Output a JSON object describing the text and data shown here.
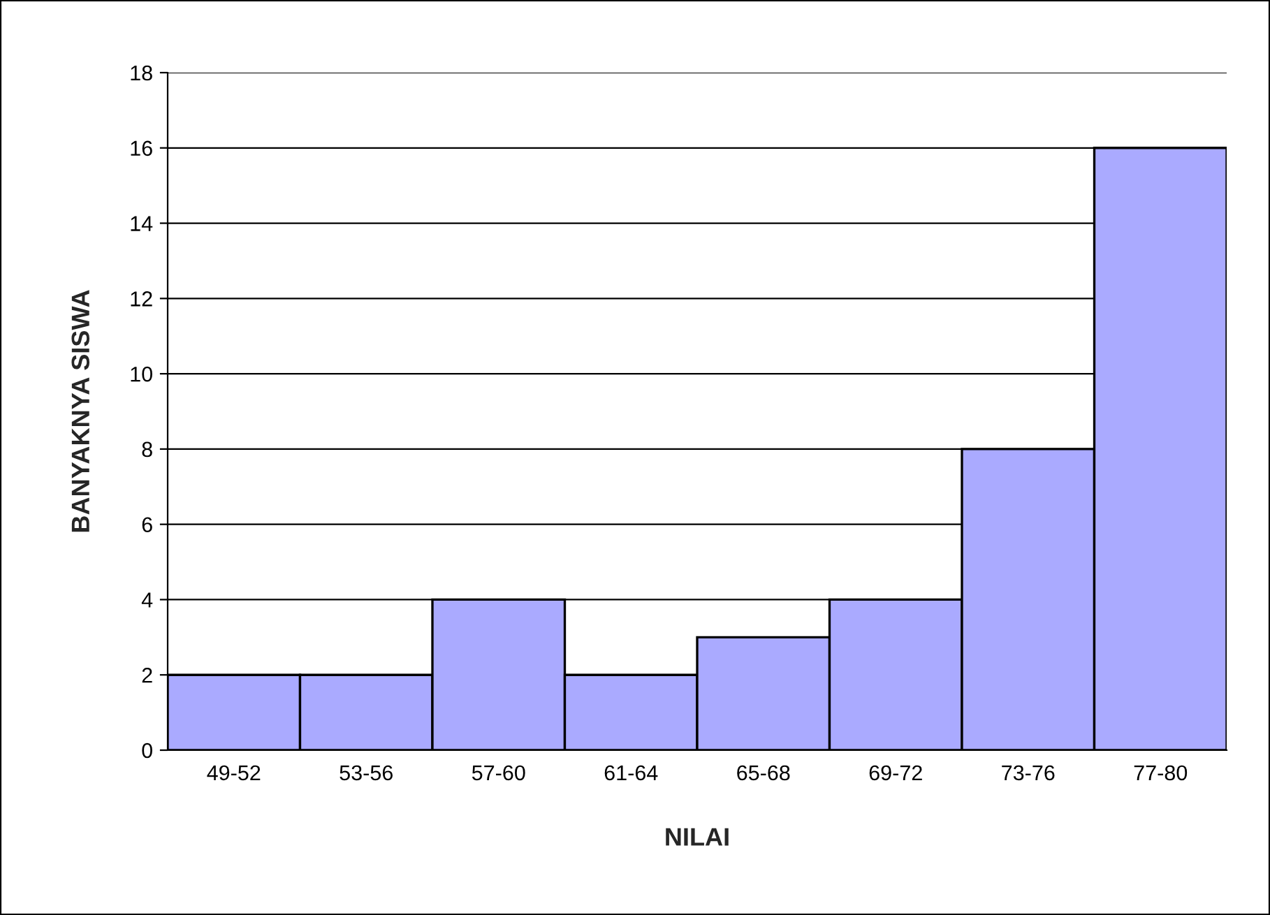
{
  "chart_data": {
    "type": "bar",
    "xlabel": "NILAI",
    "ylabel": "BANYAKNYA SISWA",
    "categories": [
      "49-52",
      "53-56",
      "57-60",
      "61-64",
      "65-68",
      "69-72",
      "73-76",
      "77-80"
    ],
    "values": [
      2,
      2,
      4,
      2,
      3,
      4,
      8,
      16
    ],
    "color": "#aaaaff",
    "ylim": [
      0,
      18
    ],
    "yticks": [
      0,
      2,
      4,
      6,
      8,
      10,
      12,
      14,
      16,
      18
    ],
    "grid": "y"
  }
}
